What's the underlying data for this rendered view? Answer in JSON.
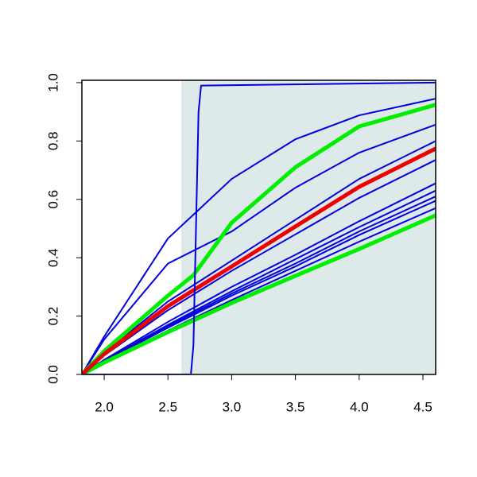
{
  "chart_data": {
    "type": "line",
    "xlim": [
      1.825,
      4.6
    ],
    "ylim": [
      0,
      1.008
    ],
    "xticks": [
      {
        "value": 2.0,
        "label": "2.0"
      },
      2.5,
      {
        "value": 3.0,
        "label": "3.0"
      },
      3.5,
      {
        "value": 4.0,
        "label": "4.0"
      },
      4.5
    ],
    "yticks": [
      {
        "value": 0,
        "label": "0.0"
      },
      0.2,
      0.4,
      0.6,
      0.8,
      {
        "value": 1,
        "label": "1.0"
      }
    ],
    "shade": {
      "xlim": [
        2.605,
        4.6
      ],
      "color": "#deeaea"
    },
    "series": [
      {
        "color": "#0000dd",
        "width": 2,
        "x": [
          1.825,
          2.0,
          2.5,
          3.0,
          3.5,
          4.0,
          4.6
        ],
        "values": [
          0,
          0.13,
          0.466,
          0.67,
          0.806,
          0.888,
          0.945
        ]
      },
      {
        "color": "#0000dd",
        "width": 2,
        "x": [
          1.825,
          2.0,
          2.5,
          3.0,
          3.5,
          4.0,
          4.6
        ],
        "values": [
          0,
          0.12,
          0.38,
          0.49,
          0.64,
          0.76,
          0.856
        ]
      },
      {
        "color": "#0000dd",
        "width": 2,
        "x": [
          1.825,
          2.0,
          2.5,
          3.0,
          3.5,
          4.0,
          4.6
        ],
        "values": [
          0,
          0.075,
          0.25,
          0.39,
          0.53,
          0.67,
          0.8
        ]
      },
      {
        "color": "#0000dd",
        "width": 2,
        "x": [
          1.825,
          2.0,
          2.5,
          3.0,
          3.5,
          4.0,
          4.6
        ],
        "values": [
          0,
          0.065,
          0.22,
          0.355,
          0.48,
          0.605,
          0.735
        ]
      },
      {
        "color": "#0000dd",
        "width": 2,
        "x": [
          1.825,
          2.0,
          2.5,
          3.0,
          3.5,
          4.0,
          4.6
        ],
        "values": [
          0,
          0.05,
          0.18,
          0.3,
          0.41,
          0.525,
          0.655
        ]
      },
      {
        "color": "#0000dd",
        "width": 2,
        "x": [
          1.825,
          2.0,
          2.5,
          3.0,
          3.5,
          4.0,
          4.6
        ],
        "values": [
          0,
          0.048,
          0.17,
          0.285,
          0.395,
          0.505,
          0.63
        ]
      },
      {
        "color": "#0000dd",
        "width": 2,
        "x": [
          1.825,
          2.0,
          2.5,
          3.0,
          3.5,
          4.0,
          4.6
        ],
        "values": [
          0,
          0.046,
          0.165,
          0.277,
          0.38,
          0.49,
          0.61
        ]
      },
      {
        "color": "#0000dd",
        "width": 2,
        "x": [
          1.825,
          2.0,
          2.5,
          3.0,
          3.5,
          4.0,
          4.6
        ],
        "values": [
          0,
          0.045,
          0.16,
          0.27,
          0.37,
          0.478,
          0.595
        ]
      },
      {
        "color": "#0000dd",
        "width": 2,
        "x": [
          1.825,
          2.0,
          2.5,
          3.0,
          3.5,
          4.0,
          4.6
        ],
        "values": [
          0,
          0.043,
          0.15,
          0.255,
          0.355,
          0.455,
          0.57
        ]
      },
      {
        "color": "#00ee00",
        "width": 5,
        "x": [
          1.825,
          2.0,
          2.5,
          2.7,
          3.0,
          3.5,
          4.0,
          4.6
        ],
        "values": [
          0,
          0.08,
          0.27,
          0.34,
          0.52,
          0.71,
          0.85,
          0.924
        ]
      },
      {
        "color": "#00ee00",
        "width": 5,
        "x": [
          1.825,
          2.0,
          2.5,
          3.0,
          3.5,
          4.0,
          4.6
        ],
        "values": [
          0,
          0.041,
          0.145,
          0.245,
          0.338,
          0.43,
          0.545
        ]
      },
      {
        "color": "#ee0000",
        "width": 5,
        "x": [
          1.825,
          2.0,
          2.5,
          3.0,
          3.5,
          4.0,
          4.6
        ],
        "values": [
          0,
          0.07,
          0.234,
          0.37,
          0.507,
          0.643,
          0.774
        ]
      },
      {
        "color": "#0000dd",
        "width": 2,
        "x": [
          1.825,
          2.68,
          2.7,
          2.72,
          2.74,
          2.76,
          4.6
        ],
        "values": [
          0,
          0,
          0.1,
          0.5,
          0.9,
          0.99,
          1
        ]
      }
    ]
  }
}
